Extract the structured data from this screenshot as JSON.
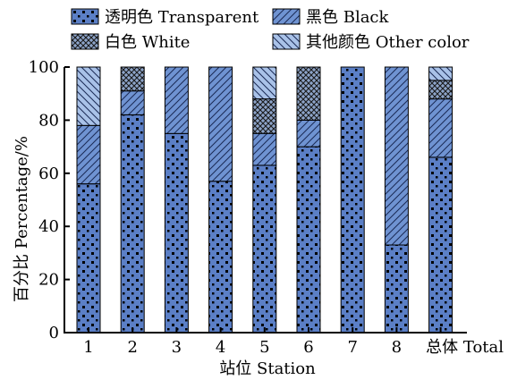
{
  "chart_data": {
    "type": "bar",
    "stacked": true,
    "xlabel": "站位 Station",
    "ylabel": "百分比 Percentage/%",
    "ylim": [
      0,
      100
    ],
    "yticks": [
      0,
      20,
      40,
      60,
      80,
      100
    ],
    "categories": [
      "1",
      "2",
      "3",
      "4",
      "5",
      "6",
      "7",
      "8",
      "总体 Total"
    ],
    "legend_placement": "top",
    "series": [
      {
        "name": "透明色 Transparent",
        "pattern": "dots",
        "color": "#5b7fc6",
        "values": [
          56,
          82,
          75,
          57,
          63,
          70,
          100,
          33,
          66
        ]
      },
      {
        "name": "黑色 Black",
        "pattern": "hatch-forward",
        "color": "#6f93d2",
        "values": [
          22,
          9,
          25,
          43,
          12,
          10,
          0,
          67,
          22
        ]
      },
      {
        "name": "白色 White",
        "pattern": "crosshatch",
        "color": "#8da4c9",
        "values": [
          0,
          9,
          0,
          0,
          13,
          20,
          0,
          0,
          7
        ]
      },
      {
        "name": "其他颜色 Other color",
        "pattern": "hatch-back",
        "color": "#a9c2e8",
        "values": [
          22,
          0,
          0,
          0,
          12,
          0,
          0,
          0,
          5
        ]
      }
    ]
  }
}
